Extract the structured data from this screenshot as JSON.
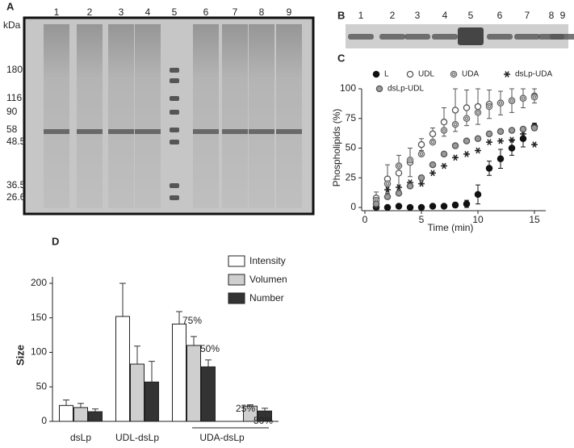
{
  "gel_a": {
    "label": "A",
    "unit": "kDa",
    "lanes": [
      1,
      2,
      3,
      4,
      5,
      6,
      7,
      8,
      9
    ],
    "markers": [
      180,
      116,
      90,
      58,
      48.5,
      36.5,
      26.6
    ]
  },
  "gel_b": {
    "label": "B",
    "lanes": [
      1,
      2,
      3,
      4,
      5,
      6,
      7,
      8,
      9
    ]
  },
  "chart_data": [
    {
      "type": "scatter",
      "panel_label": "C",
      "xlabel": "Time (min)",
      "ylabel": "Phospholipids (%)",
      "x": [
        1,
        2,
        3,
        4,
        5,
        6,
        7,
        8,
        9,
        10,
        11,
        12,
        13,
        14,
        15
      ],
      "xlim": [
        0,
        16
      ],
      "xticks": [
        0,
        5,
        10,
        15
      ],
      "ylim": [
        0,
        100
      ],
      "yticks": [
        0,
        25,
        50,
        75,
        100
      ],
      "legend": "top-left",
      "series": [
        {
          "name": "L",
          "color": "#111111",
          "marker": "filled-circle",
          "values": [
            0,
            0,
            1,
            0,
            0,
            1,
            1,
            2,
            3,
            11,
            33,
            41,
            50,
            58,
            68
          ],
          "errors": [
            0,
            0,
            1,
            0,
            0,
            1,
            1,
            2,
            3,
            8,
            6,
            8,
            6,
            7,
            3
          ]
        },
        {
          "name": "UDL",
          "color": "#555555",
          "marker": "open-circle",
          "values": [
            8,
            24,
            29,
            38,
            53,
            62,
            72,
            82,
            84,
            85,
            87,
            88,
            90,
            92,
            94
          ],
          "errors": [
            5,
            12,
            15,
            12,
            5,
            5,
            12,
            18,
            15,
            15,
            12,
            10,
            10,
            8,
            6
          ]
        },
        {
          "name": "UDA",
          "color": "#666666",
          "marker": "ring",
          "values": [
            6,
            20,
            35,
            40,
            45,
            55,
            65,
            70,
            75,
            80,
            85,
            88,
            90,
            92,
            93
          ]
        },
        {
          "name": "dsLp-UDA",
          "color": "#222222",
          "marker": "asterisk",
          "values": [
            0,
            15,
            17,
            21,
            20,
            29,
            35,
            42,
            45,
            48,
            55,
            56,
            57,
            62,
            53
          ]
        },
        {
          "name": "dsLp-UDL",
          "color": "#555555",
          "marker": "gray-circle",
          "values": [
            3,
            9,
            12,
            18,
            25,
            36,
            45,
            52,
            56,
            58,
            62,
            64,
            65,
            66,
            67
          ]
        }
      ]
    },
    {
      "type": "bar",
      "panel_label": "D",
      "ylabel": "Size",
      "categories": [
        "dsLp",
        "UDL-dsLp",
        "UDA-dsLp",
        null
      ],
      "ylim": [
        0,
        200
      ],
      "yticks": [
        0,
        50,
        100,
        150,
        200
      ],
      "legend": "top-right",
      "series": [
        {
          "name": "Intensity",
          "color": "#ffffff",
          "values": [
            23,
            152,
            141,
            null
          ],
          "errors": [
            8,
            48,
            18,
            null
          ]
        },
        {
          "name": "Volumen",
          "color": "#cfcfcf",
          "values": [
            20,
            83,
            110,
            22
          ],
          "errors": [
            6,
            26,
            13,
            2
          ]
        },
        {
          "name": "Number",
          "color": "#333333",
          "values": [
            14,
            57,
            79,
            15
          ],
          "errors": [
            4,
            30,
            10,
            4
          ]
        }
      ],
      "annotations": [
        "75%",
        "50%",
        "25%",
        "50%"
      ]
    }
  ]
}
